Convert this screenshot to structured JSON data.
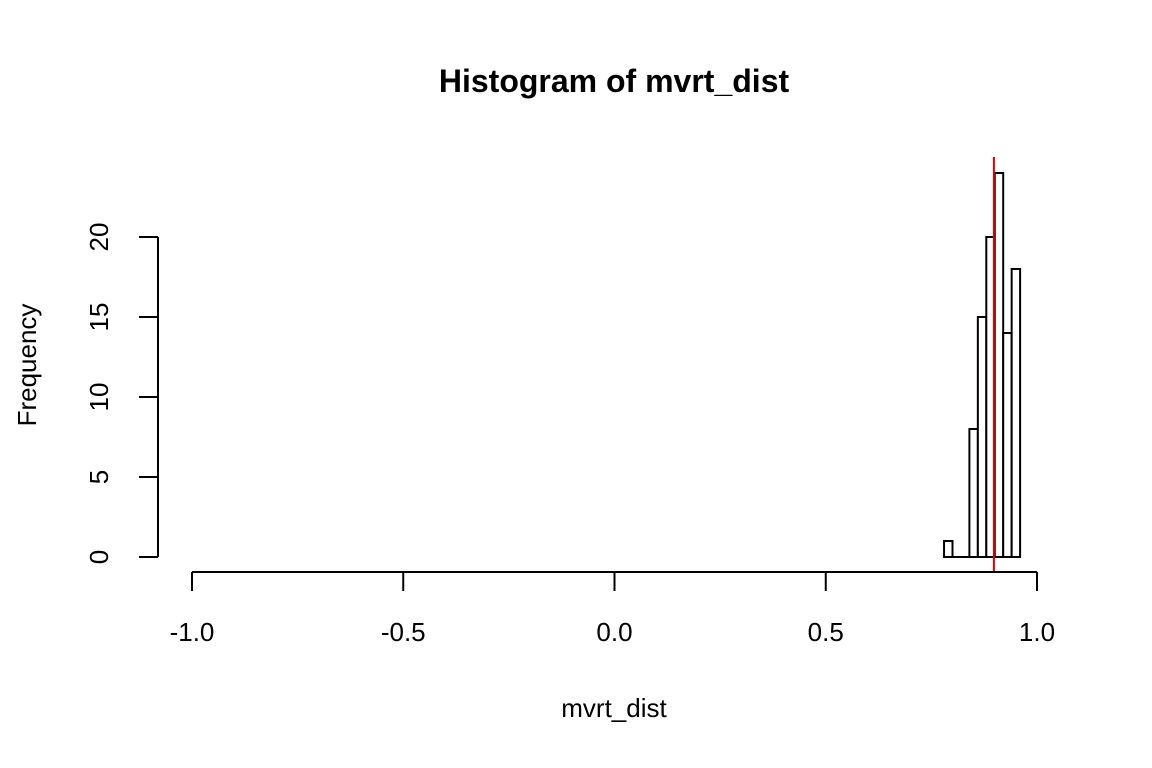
{
  "chart_data": {
    "type": "bar",
    "title": "Histogram of mvrt_dist",
    "xlabel": "mvrt_dist",
    "ylabel": "Frequency",
    "xlim": [
      -1.0,
      1.0
    ],
    "x_ticks": [
      -1.0,
      -0.5,
      0.0,
      0.5,
      1.0
    ],
    "x_tick_labels": [
      "-1.0",
      "-0.5",
      "0.0",
      "0.5",
      "1.0"
    ],
    "y_ticks": [
      0,
      5,
      10,
      15,
      20
    ],
    "y_tick_labels": [
      "0",
      "5",
      "10",
      "15",
      "20"
    ],
    "ylim": [
      0,
      24
    ],
    "bins": [
      {
        "start": 0.78,
        "end": 0.8,
        "count": 1
      },
      {
        "start": 0.8,
        "end": 0.82,
        "count": 0
      },
      {
        "start": 0.82,
        "end": 0.84,
        "count": 0
      },
      {
        "start": 0.84,
        "end": 0.86,
        "count": 8
      },
      {
        "start": 0.86,
        "end": 0.88,
        "count": 15
      },
      {
        "start": 0.88,
        "end": 0.9,
        "count": 20
      },
      {
        "start": 0.9,
        "end": 0.92,
        "count": 24
      },
      {
        "start": 0.92,
        "end": 0.94,
        "count": 14
      },
      {
        "start": 0.94,
        "end": 0.96,
        "count": 18
      }
    ],
    "reference_line": {
      "x": 0.898,
      "color": "#e00000"
    },
    "grid": false
  }
}
